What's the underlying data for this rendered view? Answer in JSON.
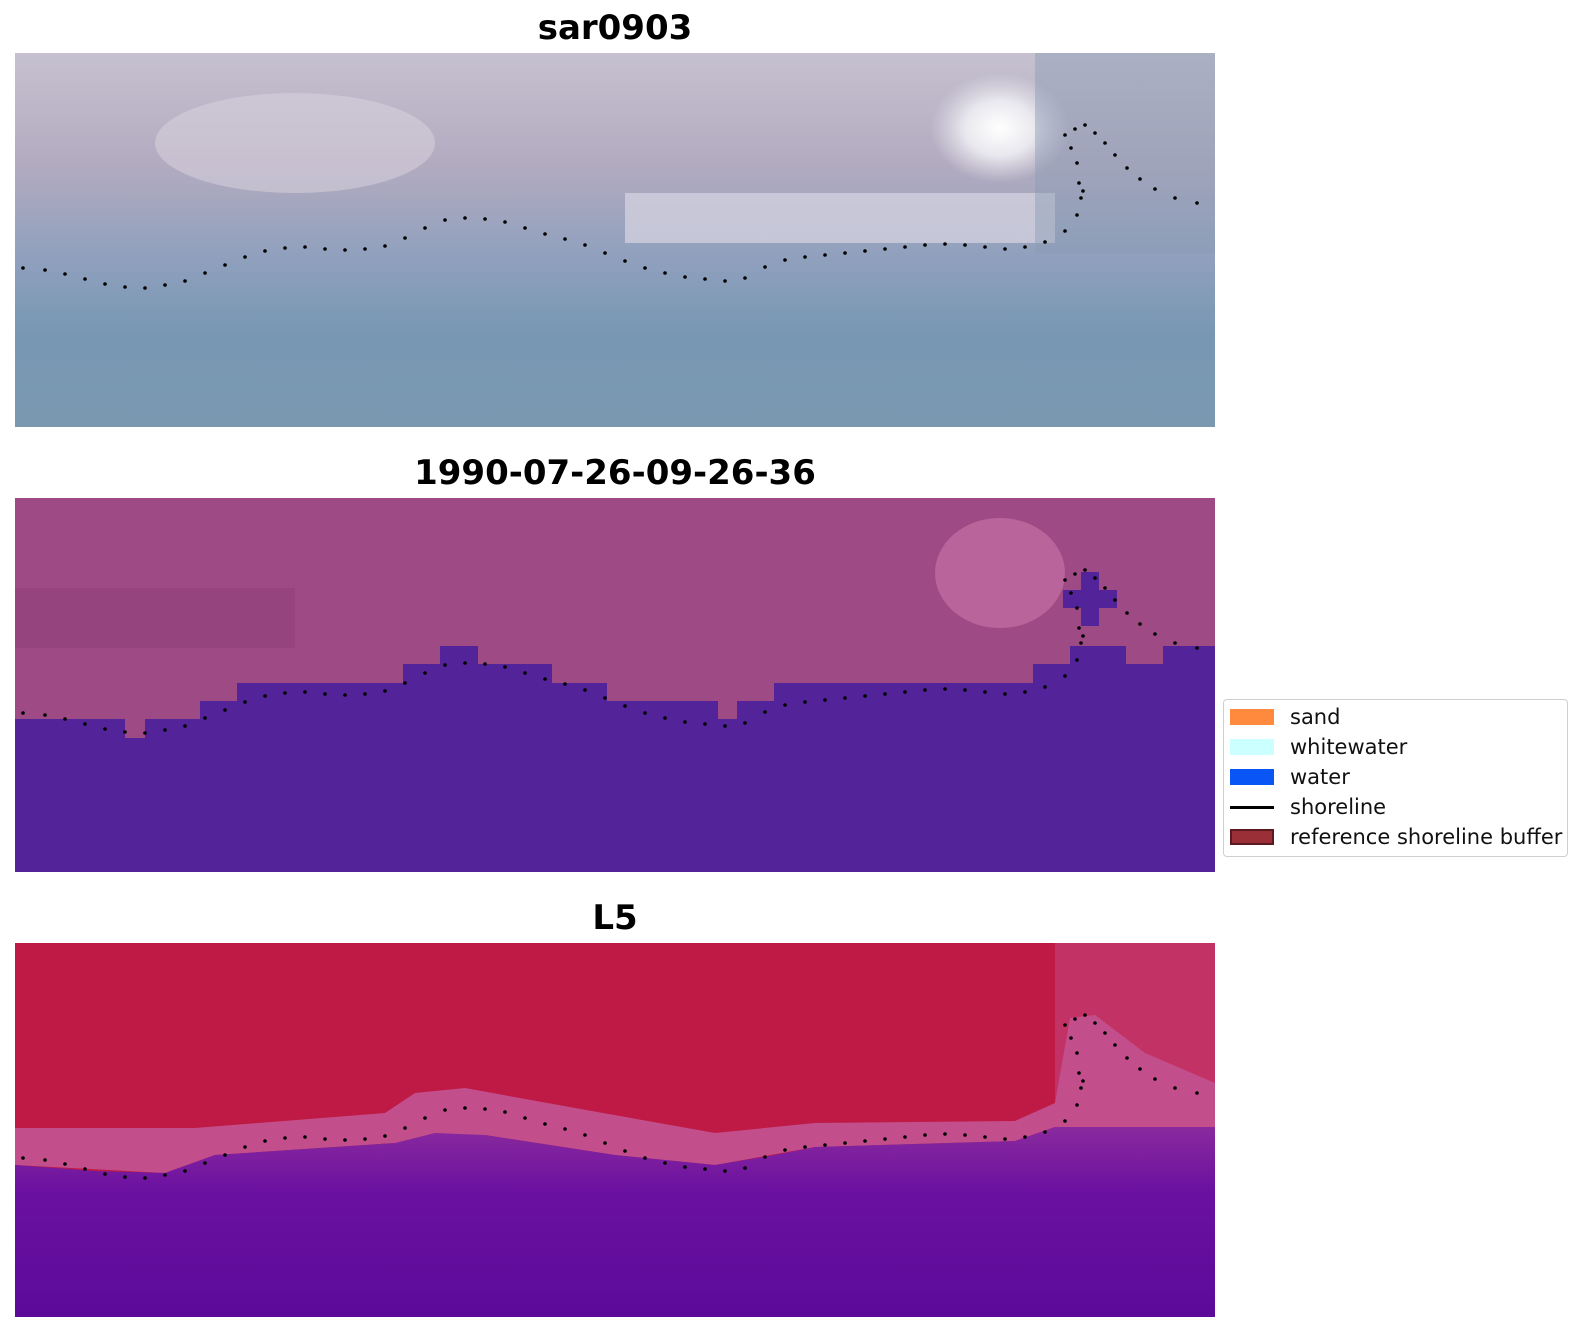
{
  "panels": [
    {
      "title": "sar0903"
    },
    {
      "title": "1990-07-26-09-26-36"
    },
    {
      "title": "L5"
    }
  ],
  "legend": {
    "items": [
      {
        "label": "sand",
        "color": "#ff8a3d",
        "kind": "patch"
      },
      {
        "label": "whitewater",
        "color": "#ccffff",
        "kind": "patch"
      },
      {
        "label": "water",
        "color": "#0a55f5",
        "kind": "patch"
      },
      {
        "label": "shoreline",
        "color": "#000000",
        "kind": "line"
      },
      {
        "label": "reference shoreline buffer",
        "color": "#9a2f37",
        "kind": "patch-edge"
      }
    ]
  },
  "colors": {
    "sar_land": "#b8b1c6",
    "sar_water": "#7796b0",
    "sar_bright": "#ffffff",
    "class_land": "#9e4a84",
    "class_water": "#53239a",
    "l5_land": "#c01a46",
    "l5_transition": "#c24f8c",
    "l5_water": "#620ba0"
  }
}
